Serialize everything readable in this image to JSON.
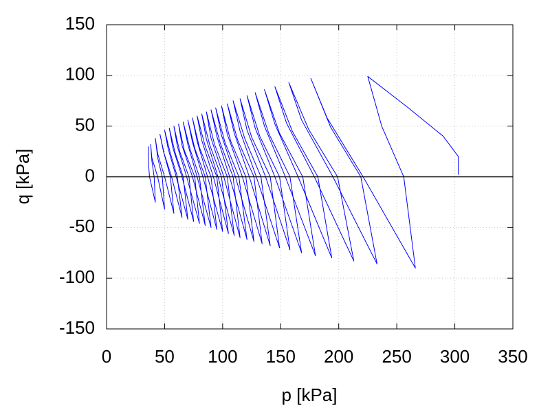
{
  "chart_data": {
    "type": "line",
    "x_label": "p [kPa]",
    "y_label": "q [kPa]",
    "xlim": [
      0,
      350
    ],
    "ylim": [
      -150,
      150
    ],
    "xticks": [
      0,
      50,
      100,
      150,
      200,
      250,
      300,
      350
    ],
    "yticks": [
      -150,
      -100,
      -50,
      0,
      50,
      100,
      150
    ],
    "grid": true,
    "zero_line": true,
    "series": [
      {
        "color": "#0000ff",
        "x": [
          303,
          303,
          290,
          260,
          225,
          237,
          256,
          266,
          221,
          190,
          176,
          193,
          219,
          233,
          195,
          168,
          157,
          174,
          199,
          213,
          179,
          155,
          145,
          160,
          182,
          194,
          165,
          145,
          136,
          149,
          169,
          180,
          154,
          136,
          128,
          140,
          158,
          168,
          145,
          128,
          121,
          132,
          149,
          158,
          137,
          121,
          115,
          125,
          141,
          149,
          129,
          115,
          109,
          119,
          133,
          141,
          123,
          110,
          104,
          113,
          127,
          134,
          117,
          104,
          99,
          107,
          120,
          127,
          111,
          99,
          94,
          102,
          114,
          121,
          106,
          95,
          90,
          98,
          109,
          115,
          101,
          90,
          86,
          93,
          104,
          110,
          96,
          86,
          82,
          89,
          99,
          105,
          92,
          82,
          78,
          85,
          95,
          100,
          87,
          78,
          74,
          80,
          90,
          95,
          83,
          74,
          70,
          76,
          85,
          90,
          78,
          70,
          66,
          72,
          80,
          85,
          74,
          65,
          62,
          67,
          76,
          80,
          69,
          61,
          58,
          63,
          71,
          75,
          65,
          57,
          54,
          59,
          66,
          70,
          60,
          53,
          50,
          55,
          61,
          65,
          56,
          49,
          46,
          50,
          55,
          58,
          50,
          44,
          42,
          44,
          48,
          50,
          44,
          39,
          38,
          39,
          41,
          42,
          37,
          36,
          36
        ],
        "values": [
          2,
          20,
          40,
          68,
          99,
          50,
          0,
          -90,
          0,
          58,
          97,
          49,
          0,
          -86,
          0,
          56,
          93,
          47,
          0,
          -83,
          0,
          53,
          89,
          45,
          0,
          -80,
          0,
          52,
          86,
          43,
          0,
          -78,
          0,
          50,
          83,
          42,
          0,
          -75,
          0,
          48,
          80,
          40,
          0,
          -72,
          0,
          46,
          77,
          39,
          0,
          -70,
          0,
          45,
          75,
          38,
          0,
          -68,
          0,
          43,
          72,
          36,
          0,
          -66,
          0,
          42,
          70,
          35,
          0,
          -64,
          0,
          41,
          68,
          34,
          0,
          -62,
          0,
          40,
          66,
          33,
          0,
          -60,
          0,
          38,
          64,
          32,
          0,
          -58,
          0,
          37,
          62,
          31,
          0,
          -56,
          0,
          36,
          60,
          30,
          0,
          -54,
          0,
          35,
          58,
          29,
          0,
          -52,
          0,
          34,
          56,
          28,
          0,
          -50,
          0,
          32,
          54,
          27,
          0,
          -48,
          0,
          31,
          52,
          26,
          0,
          -46,
          0,
          30,
          50,
          25,
          0,
          -44,
          0,
          29,
          48,
          24,
          0,
          -42,
          0,
          28,
          46,
          23,
          0,
          -40,
          0,
          25,
          42,
          21,
          0,
          -36,
          0,
          23,
          38,
          19,
          0,
          -32,
          0,
          19,
          32,
          16,
          0,
          -25,
          0,
          15,
          30
        ]
      }
    ]
  }
}
